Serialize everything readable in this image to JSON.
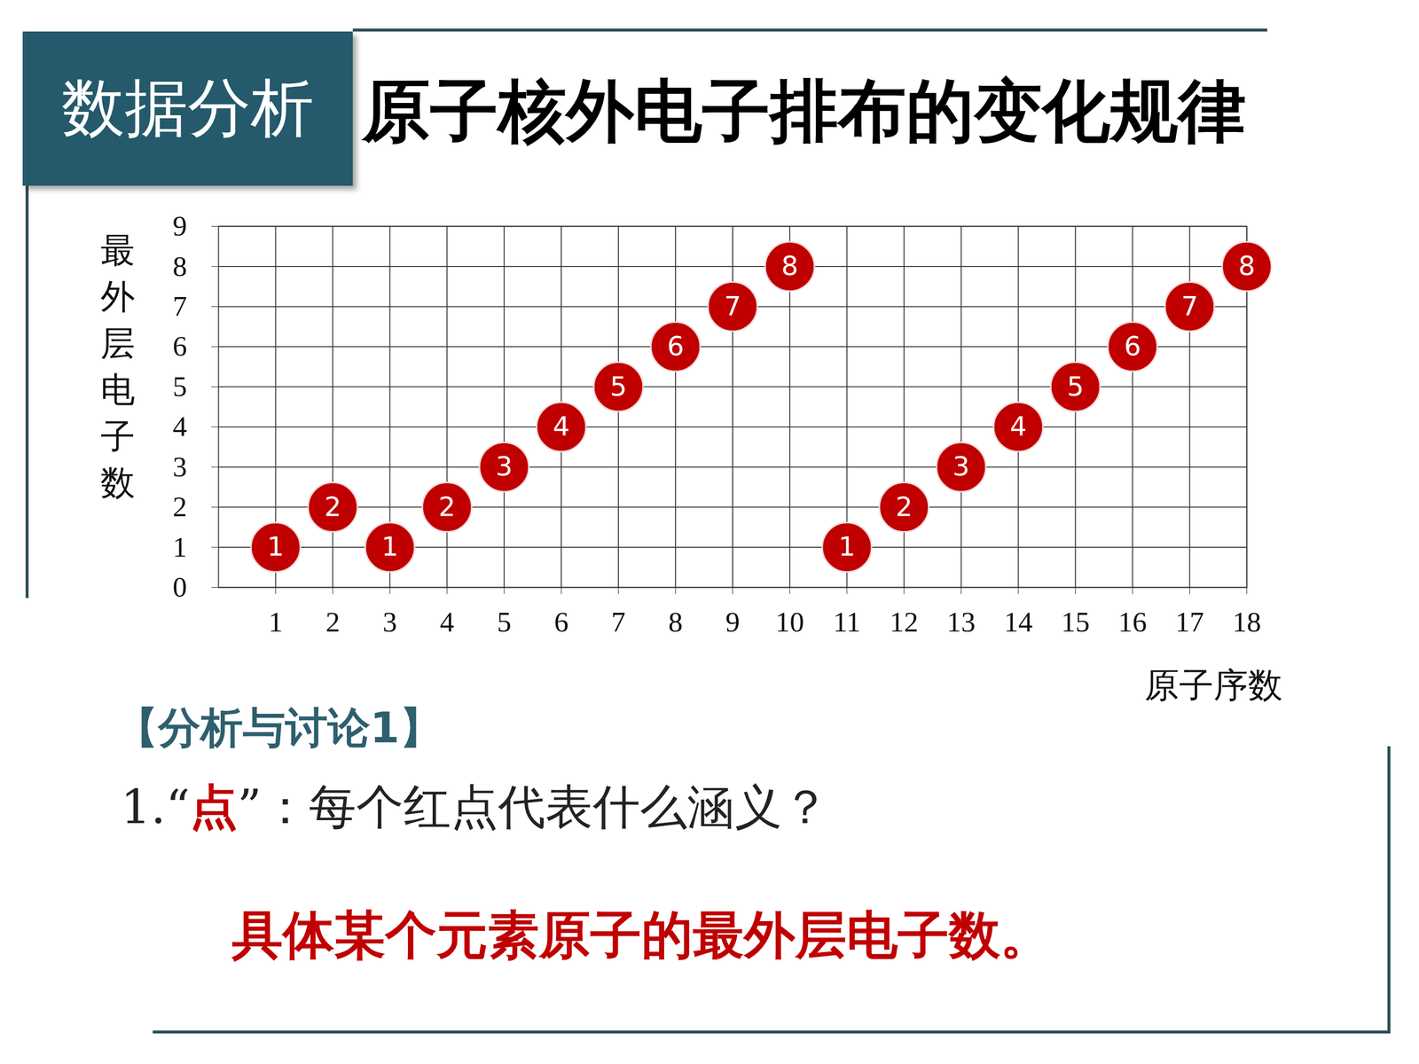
{
  "header": {
    "tag": "数据分析"
  },
  "chart_data": {
    "type": "scatter",
    "title": "原子核外电子排布的变化规律",
    "x": [
      1,
      2,
      3,
      4,
      5,
      6,
      7,
      8,
      9,
      10,
      11,
      12,
      13,
      14,
      15,
      16,
      17,
      18
    ],
    "values": [
      1,
      2,
      1,
      2,
      3,
      4,
      5,
      6,
      7,
      8,
      1,
      2,
      3,
      4,
      5,
      6,
      7,
      8
    ],
    "xlabel": "原子序数",
    "ylabel": "最外层电子数",
    "xlim": [
      0,
      18
    ],
    "xticks": [
      1,
      2,
      3,
      4,
      5,
      6,
      7,
      8,
      9,
      10,
      11,
      12,
      13,
      14,
      15,
      16,
      17,
      18
    ],
    "ylim": [
      0,
      9
    ],
    "yticks": [
      0,
      1,
      2,
      3,
      4,
      5,
      6,
      7,
      8,
      9
    ],
    "grid": true,
    "data_labels": true,
    "color": "#c00000",
    "marker": "circle"
  },
  "discussion": {
    "heading": "【分析与讨论1】",
    "question": [
      "1.“",
      "点",
      "”：每个红点代表什么涵义？"
    ],
    "answer": "具体某个元素原子的最外层电子数。"
  }
}
